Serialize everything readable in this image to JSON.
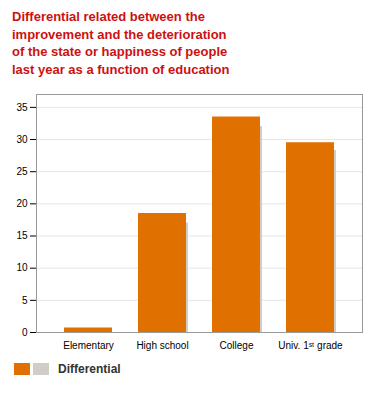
{
  "chart_data": {
    "type": "bar",
    "title": "Differential related between the\nimprovement and the deterioration\nof the state or happiness of people\nlast year as a function of education",
    "categories": [
      "Elementary",
      "High school",
      "College",
      "Univ. 1ˢᵗ grade"
    ],
    "series": [
      {
        "name": "Differential",
        "color": "#e07000",
        "values": [
          0.7,
          18.5,
          33.5,
          29.5
        ]
      },
      {
        "color": "#d0cdc8",
        "values": [
          0.0,
          17.0,
          32.0,
          28.3
        ]
      }
    ],
    "ylim": [
      0,
      37
    ],
    "yticks": [
      0,
      5,
      10,
      15,
      20,
      25,
      30,
      35
    ],
    "grid": true
  }
}
